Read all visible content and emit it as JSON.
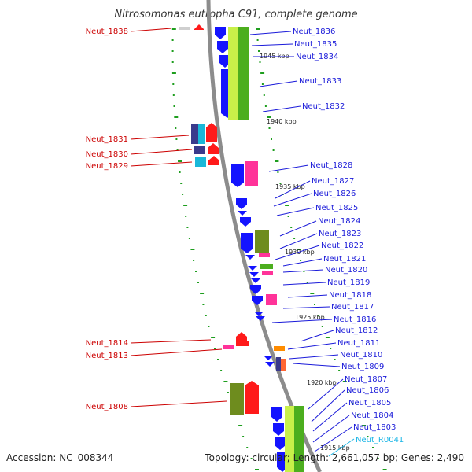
{
  "map": {
    "title": "Nitrosomonas eutropha C91, complete genome",
    "accession_label": "Accession: NC_008344",
    "summary_label": "Topology: circular; Length: 2,661,057 bp; Genes: 2,490",
    "colors": {
      "backbone": "#8c8c8c",
      "tick": "#1e9e1e",
      "left_label": "#cc0000",
      "right_label": "#1a1ad9",
      "rna_label": "#19b5e6",
      "forward_cds": "#ff1a1a",
      "reverse_cds": "#1414ff",
      "green_bar": "#4cae1e",
      "olive_bar": "#6e8c1e",
      "magenta_bar": "#ff3399",
      "cyan_block": "#1ab8d9",
      "navy_block": "#3a3a8c",
      "orange_block": "#ff8c00"
    },
    "kbp_labels": [
      "1945 kbp",
      "1940 kbp",
      "1935 kbp",
      "1930 kbp",
      "1925 kbp",
      "1920 kbp",
      "1915 kbp"
    ],
    "left_genes": [
      "Neut_1838",
      "Neut_1831",
      "Neut_1830",
      "Neut_1829",
      "Neut_1814",
      "Neut_1813",
      "Neut_1808"
    ],
    "right_genes": [
      "Neut_1836",
      "Neut_1835",
      "Neut_1834",
      "Neut_1833",
      "Neut_1832",
      "Neut_1828",
      "Neut_1827",
      "Neut_1826",
      "Neut_1825",
      "Neut_1824",
      "Neut_1823",
      "Neut_1822",
      "Neut_1821",
      "Neut_1820",
      "Neut_1819",
      "Neut_1818",
      "Neut_1817",
      "Neut_1816",
      "Neut_1812",
      "Neut_1811",
      "Neut_1810",
      "Neut_1809",
      "Neut_1807",
      "Neut_1806",
      "Neut_1805",
      "Neut_1804",
      "Neut_1803"
    ],
    "rna_genes": [
      "Neut_R0041"
    ]
  }
}
